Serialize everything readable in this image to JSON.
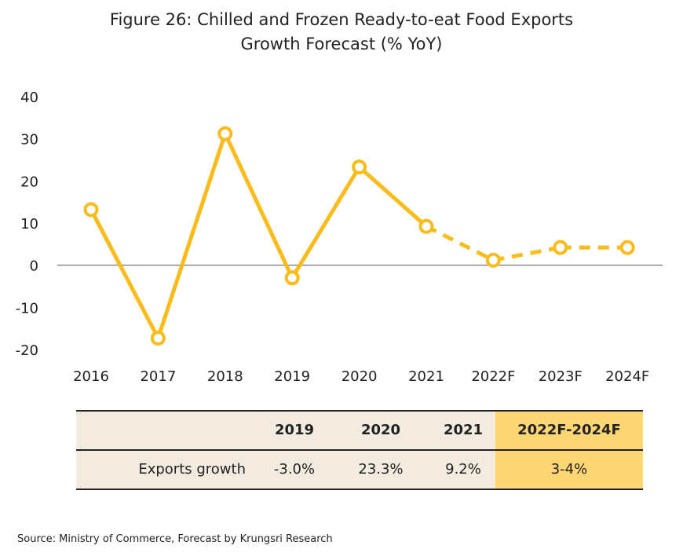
{
  "title_line1": "Figure 26: Chilled and Frozen Ready-to-eat Food Exports",
  "title_line2": "Growth Forecast (% YoY)",
  "chart_data": {
    "type": "line",
    "title": "Figure 26: Chilled and Frozen Ready-to-eat Food Exports Growth Forecast (% YoY)",
    "categories": [
      "2016",
      "2017",
      "2018",
      "2019",
      "2020",
      "2021",
      "2022F",
      "2023F",
      "2024F"
    ],
    "series": [
      {
        "values": [
          13.2,
          -17.3,
          31.2,
          -3.0,
          23.3,
          9.2,
          1.2,
          4.2,
          4.2
        ]
      }
    ],
    "forecast_start_index": 5,
    "ylim": [
      -20,
      40
    ],
    "yticks": [
      "40",
      "30",
      "20",
      "10",
      "0",
      "-10",
      "-20"
    ],
    "xlabel": "",
    "ylabel": "",
    "line_color": "#fbbc1a",
    "grid": false
  },
  "table": {
    "headers": [
      "",
      "2019",
      "2020",
      "2021",
      "2022F-2024F"
    ],
    "row_label": "Exports growth",
    "values": [
      "-3.0%",
      "23.3%",
      "9.2%",
      "3-4%"
    ],
    "bg_color": "#f3ebe0",
    "highlight_color": "#fed674"
  },
  "source": "Source: Ministry of Commerce, Forecast by Krungsri Research"
}
